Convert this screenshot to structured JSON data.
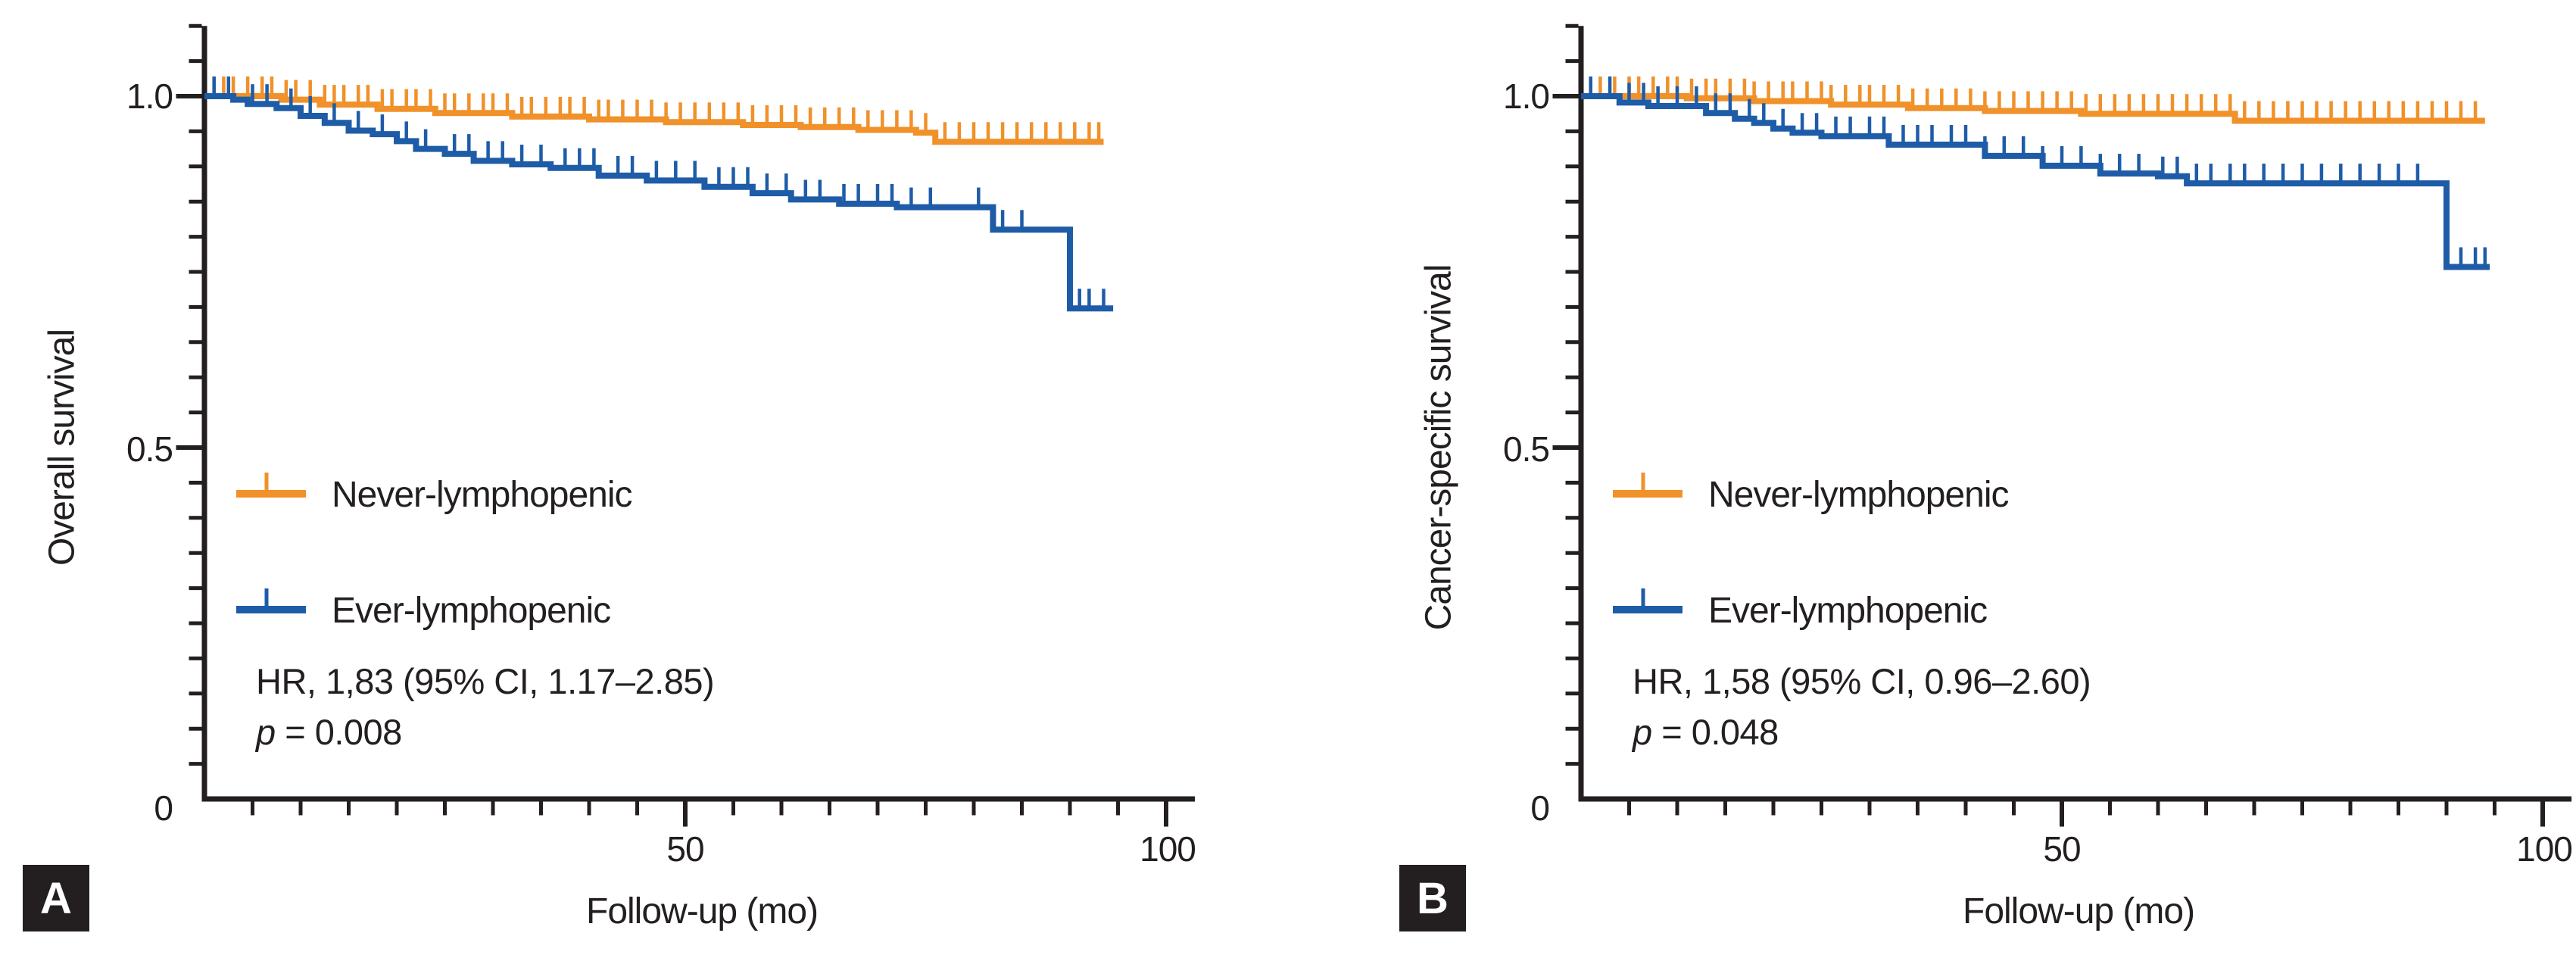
{
  "figure": {
    "background": "#ffffff",
    "axis_color": "#231F20",
    "panels": [
      {
        "badge": "A",
        "y_axis_label": "Overall survival",
        "x_axis_label": "Follow-up (mo)",
        "y_tick_labels": [
          "1.0",
          "0.5",
          "0"
        ],
        "x_tick_labels": [
          "50",
          "100"
        ],
        "legend": [
          {
            "label": "Never-lymphopenic",
            "color": "#F0912A"
          },
          {
            "label": "Ever-lymphopenic",
            "color": "#1E5CA8"
          }
        ],
        "hr_text": "HR, 1,83 (95% CI, 1.17–2.85)",
        "p_label": "p",
        "p_value": " = 0.008"
      },
      {
        "badge": "B",
        "y_axis_label": "Cancer-specific survival",
        "x_axis_label": "Follow-up (mo)",
        "y_tick_labels": [
          "1.0",
          "0.5",
          "0"
        ],
        "x_tick_labels": [
          "50",
          "100"
        ],
        "legend": [
          {
            "label": "Never-lymphopenic",
            "color": "#F0912A"
          },
          {
            "label": "Ever-lymphopenic",
            "color": "#1E5CA8"
          }
        ],
        "hr_text": "HR, 1,58 (95% CI, 0.96–2.60)",
        "p_label": "p",
        "p_value": " = 0.048"
      }
    ]
  },
  "chart_data": [
    {
      "type": "line",
      "subtype": "kaplan-meier-step",
      "panel": "A",
      "title": "Overall survival by lymphopenia status",
      "xlabel": "Follow-up (mo)",
      "ylabel": "Overall survival",
      "xlim": [
        0,
        103
      ],
      "ylim": [
        0,
        1.1
      ],
      "x_major_ticks": [
        50,
        100
      ],
      "x_minor_step": 5,
      "y_major_ticks": [
        0,
        0.5,
        1.0
      ],
      "y_minor_step": 0.05,
      "grid": false,
      "legend_position": "center-left",
      "annotations": [
        "HR, 1,83 (95% CI, 1.17–2.85)",
        "p = 0.008"
      ],
      "series": [
        {
          "name": "Never-lymphopenic",
          "color": "#F0912A",
          "steps": [
            [
              0,
              1.0
            ],
            [
              8,
              0.995
            ],
            [
              12,
              0.988
            ],
            [
              18,
              0.982
            ],
            [
              24,
              0.976
            ],
            [
              32,
              0.971
            ],
            [
              40,
              0.967
            ],
            [
              48,
              0.963
            ],
            [
              56,
              0.959
            ],
            [
              62,
              0.956
            ],
            [
              68,
              0.952
            ],
            [
              74,
              0.948
            ],
            [
              76,
              0.935
            ],
            [
              93.5,
              0.935
            ]
          ],
          "censor_times": [
            1,
            2,
            3,
            4.5,
            6,
            7,
            8.5,
            9.5,
            11,
            12.5,
            13.5,
            14.5,
            16,
            17,
            18.5,
            19.5,
            21,
            22,
            23.5,
            25,
            26,
            27.5,
            29,
            30,
            31.5,
            33,
            34,
            35.5,
            37,
            38,
            39.5,
            41,
            42,
            43.5,
            45,
            46.5,
            48,
            49.5,
            51,
            52.5,
            54,
            55.5,
            57,
            58.5,
            60,
            61.5,
            63,
            64.5,
            66,
            67.5,
            69,
            70.5,
            72,
            73.5,
            75,
            77,
            78.5,
            80,
            81.5,
            83,
            84.5,
            86,
            87.5,
            89,
            90.5,
            92,
            93
          ]
        },
        {
          "name": "Ever-lymphopenic",
          "color": "#1E5CA8",
          "steps": [
            [
              0,
              1.0
            ],
            [
              3,
              0.995
            ],
            [
              4.5,
              0.989
            ],
            [
              7.5,
              0.983
            ],
            [
              10,
              0.972
            ],
            [
              12.5,
              0.962
            ],
            [
              15,
              0.951
            ],
            [
              17.5,
              0.946
            ],
            [
              20,
              0.936
            ],
            [
              22,
              0.925
            ],
            [
              25,
              0.918
            ],
            [
              28,
              0.908
            ],
            [
              32,
              0.903
            ],
            [
              36,
              0.898
            ],
            [
              41,
              0.887
            ],
            [
              46,
              0.88
            ],
            [
              52,
              0.871
            ],
            [
              57,
              0.862
            ],
            [
              61,
              0.853
            ],
            [
              66,
              0.847
            ],
            [
              72,
              0.842
            ],
            [
              82,
              0.81
            ],
            [
              90,
              0.698
            ],
            [
              94.5,
              0.698
            ]
          ],
          "censor_times": [
            1,
            2.5,
            5,
            6.5,
            9,
            11,
            13.5,
            16,
            18.5,
            21,
            23,
            26,
            27.5,
            29.5,
            31,
            33,
            35,
            37.5,
            39,
            40.5,
            43,
            44.5,
            47,
            49,
            51,
            53.5,
            55,
            56.5,
            58.5,
            60.5,
            62.5,
            64,
            66.5,
            68,
            70,
            71.5,
            73.5,
            75.5,
            80.5,
            83,
            85,
            91,
            92,
            93.5
          ]
        }
      ]
    },
    {
      "type": "line",
      "subtype": "kaplan-meier-step",
      "panel": "B",
      "title": "Cancer-specific survival by lymphopenia status",
      "xlabel": "Follow-up (mo)",
      "ylabel": "Cancer-specific survival",
      "xlim": [
        0,
        103
      ],
      "ylim": [
        0,
        1.1
      ],
      "x_major_ticks": [
        50,
        100
      ],
      "x_minor_step": 5,
      "y_major_ticks": [
        0,
        0.5,
        1.0
      ],
      "y_minor_step": 0.05,
      "grid": false,
      "legend_position": "center-left",
      "annotations": [
        "HR, 1,58 (95% CI, 0.96–2.60)",
        "p = 0.048"
      ],
      "series": [
        {
          "name": "Never-lymphopenic",
          "color": "#F0912A",
          "steps": [
            [
              0,
              1.0
            ],
            [
              11,
              0.997
            ],
            [
              18,
              0.993
            ],
            [
              26,
              0.988
            ],
            [
              34,
              0.983
            ],
            [
              42,
              0.979
            ],
            [
              52,
              0.975
            ],
            [
              68,
              0.965
            ],
            [
              94,
              0.965
            ]
          ],
          "censor_times": [
            1,
            2,
            3.5,
            5,
            6,
            7.5,
            9,
            10,
            11.5,
            13,
            14,
            15.5,
            17,
            18,
            19.5,
            21,
            22,
            23.5,
            25,
            26,
            27.5,
            29,
            30,
            31.5,
            33,
            34.5,
            36,
            37.5,
            39,
            40.5,
            42,
            43.5,
            45,
            46.5,
            48,
            49.5,
            51,
            52.5,
            54,
            55.5,
            57,
            58.5,
            60,
            61.5,
            63,
            64.5,
            66,
            67.5,
            69,
            70.5,
            72,
            73.5,
            75,
            76.5,
            78,
            79.5,
            81,
            82.5,
            84,
            85.5,
            87,
            88.5,
            90,
            91.5,
            93
          ]
        },
        {
          "name": "Ever-lymphopenic",
          "color": "#1E5CA8",
          "steps": [
            [
              0,
              1.0
            ],
            [
              4,
              0.991
            ],
            [
              7,
              0.986
            ],
            [
              13,
              0.976
            ],
            [
              16,
              0.968
            ],
            [
              18,
              0.962
            ],
            [
              20,
              0.954
            ],
            [
              22,
              0.948
            ],
            [
              25,
              0.943
            ],
            [
              32,
              0.931
            ],
            [
              42,
              0.915
            ],
            [
              48,
              0.901
            ],
            [
              54,
              0.89
            ],
            [
              60,
              0.886
            ],
            [
              63,
              0.876
            ],
            [
              90,
              0.757
            ],
            [
              94.5,
              0.757
            ]
          ],
          "censor_times": [
            1,
            3,
            5,
            6.5,
            8,
            10,
            12,
            14,
            15.5,
            17.5,
            19,
            21,
            23,
            24.5,
            26.5,
            28,
            30,
            31.5,
            33.5,
            35,
            36.5,
            38.5,
            40,
            42,
            44,
            46,
            48,
            50,
            52,
            54,
            56,
            58,
            60.5,
            62,
            64,
            65.5,
            67.5,
            69,
            71,
            73,
            75,
            77,
            79,
            81,
            83,
            85,
            87,
            91.5,
            93,
            94
          ]
        }
      ]
    }
  ]
}
